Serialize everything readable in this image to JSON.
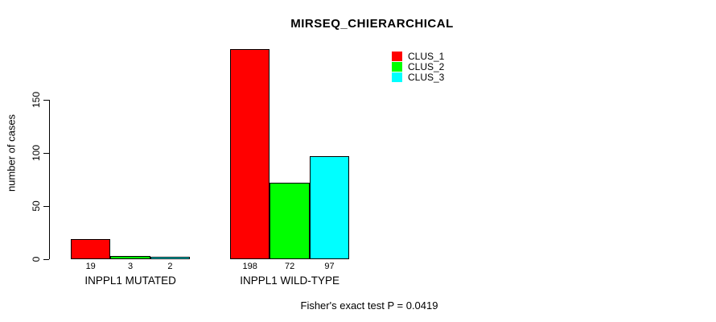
{
  "title": "MIRSEQ_CHIERARCHICAL",
  "footer_note": "Fisher's exact test P = 0.0419",
  "y_axis": {
    "label": "number of cases",
    "ticks": [
      0,
      50,
      100,
      150
    ]
  },
  "legend": {
    "items": [
      {
        "label": "CLUS_1",
        "color": "#ff0000"
      },
      {
        "label": "CLUS_2",
        "color": "#00ff00"
      },
      {
        "label": "CLUS_3",
        "color": "#00ffff"
      }
    ]
  },
  "chart_data": {
    "type": "bar",
    "categories": [
      "INPPL1 MUTATED",
      "INPPL1 WILD-TYPE"
    ],
    "series": [
      {
        "name": "CLUS_1",
        "color": "#ff0000",
        "values": [
          19,
          198
        ]
      },
      {
        "name": "CLUS_2",
        "color": "#00ff00",
        "values": [
          3,
          72
        ]
      },
      {
        "name": "CLUS_3",
        "color": "#00ffff",
        "values": [
          2,
          97
        ]
      }
    ],
    "title": "MIRSEQ_CHIERARCHICAL",
    "xlabel": "",
    "ylabel": "number of cases",
    "ylim": [
      0,
      200
    ],
    "bar_value_labels": [
      [
        "19",
        "3",
        "2"
      ],
      [
        "198",
        "72",
        "97"
      ]
    ],
    "annotation": "Fisher's exact test P = 0.0419",
    "legend_position": "top-right",
    "grid": false,
    "bar_border_color": "#000000",
    "background_color": "#ffffff"
  }
}
